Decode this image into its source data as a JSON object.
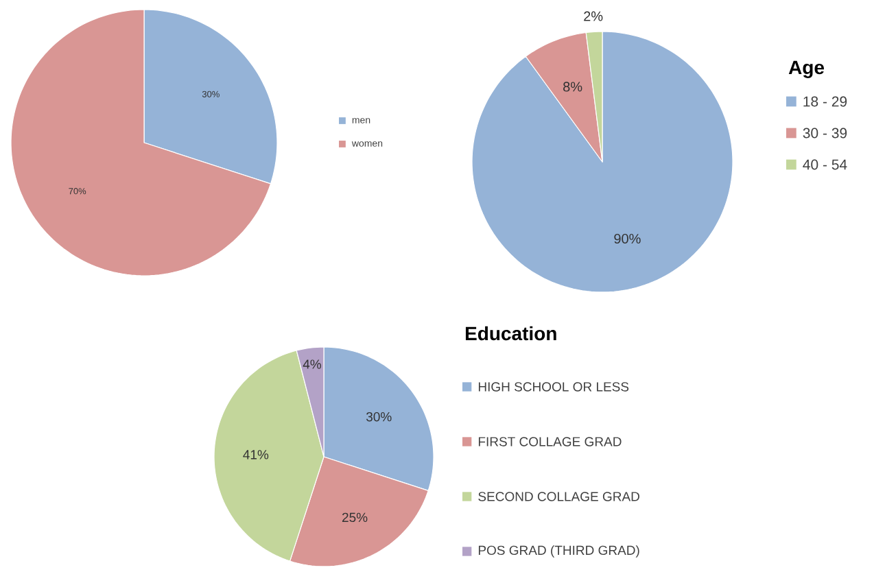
{
  "chart_data": [
    {
      "type": "pie",
      "categories": [
        "men",
        "women"
      ],
      "values": [
        30,
        70
      ],
      "colors": [
        "#95b3d7",
        "#d99694"
      ],
      "value_labels": [
        "30%",
        "70%"
      ],
      "legend": "right"
    },
    {
      "type": "pie",
      "legend_title": "Age",
      "categories": [
        "18 - 29",
        "30 - 39",
        "40 - 54"
      ],
      "values": [
        90,
        8,
        2
      ],
      "colors": [
        "#95b3d7",
        "#d99694",
        "#c3d69b"
      ],
      "value_labels": [
        "90%",
        "8%",
        "2%"
      ],
      "legend": "right"
    },
    {
      "type": "pie",
      "legend_title": "Education",
      "categories": [
        "HIGH SCHOOL OR LESS",
        "FIRST COLLAGE GRAD",
        "SECOND COLLAGE GRAD",
        "POS GRAD (THIRD GRAD)"
      ],
      "values": [
        30,
        25,
        41,
        4
      ],
      "colors": [
        "#95b3d7",
        "#d99694",
        "#c3d69b",
        "#b3a2c7"
      ],
      "value_labels": [
        "30%",
        "25%",
        "41%",
        "4%"
      ],
      "legend": "right"
    }
  ]
}
